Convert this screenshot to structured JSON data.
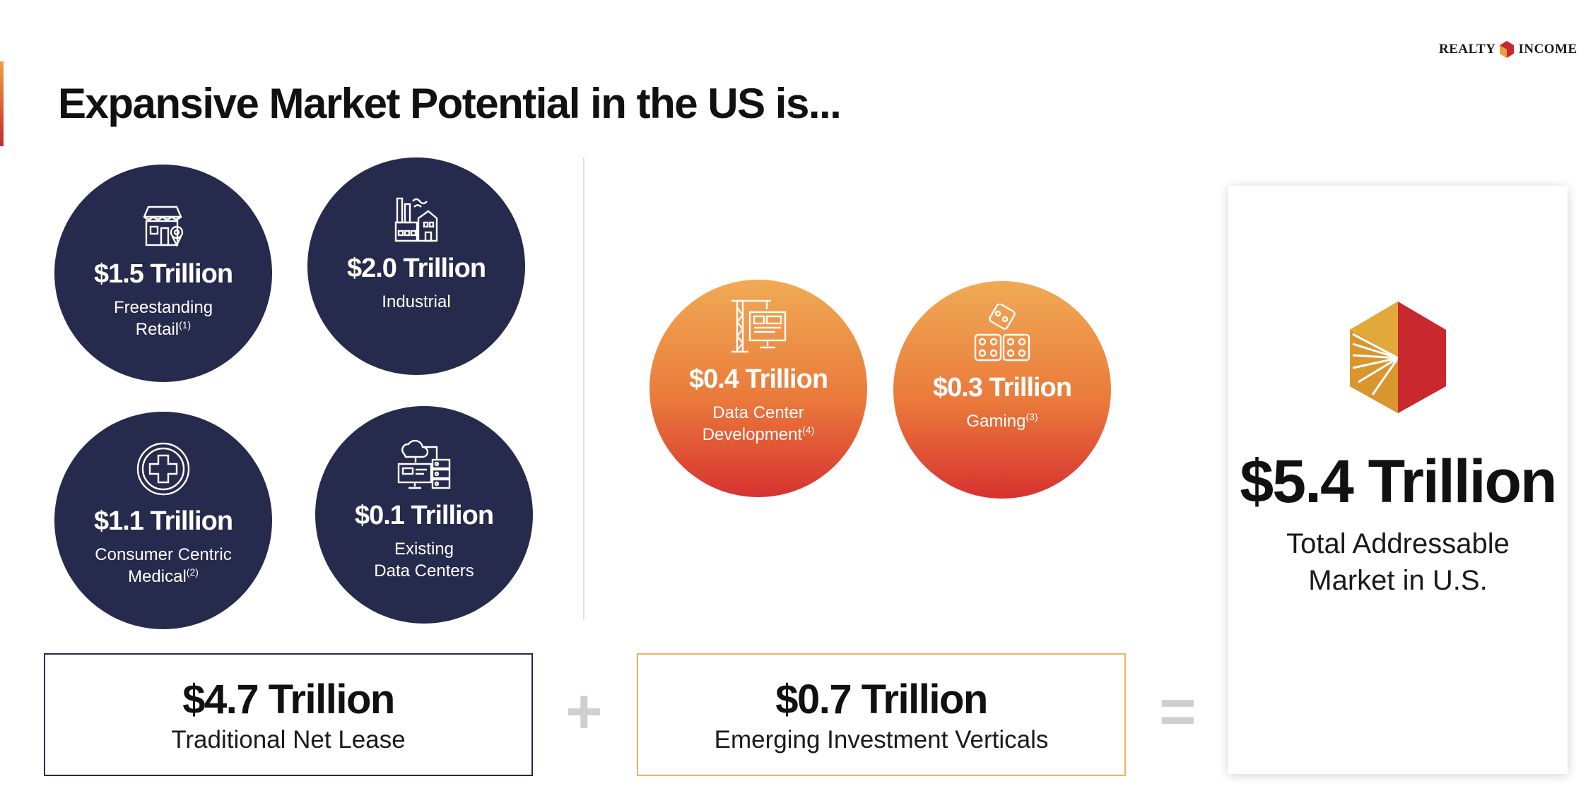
{
  "header": {
    "logo_left": "REALTY",
    "logo_right": "INCOME",
    "title": "Expansive Market Potential in the US is..."
  },
  "colors": {
    "navy": "#262a4c",
    "warm_top": "#f0aa55",
    "warm_bottom": "#d73230",
    "box_navy_border": "#262a4c",
    "box_orange_border": "#f0b15a",
    "operator": "#cfcfcf"
  },
  "traditional": {
    "items": [
      {
        "icon": "storefront-icon",
        "value": "$1.5 Trillion",
        "label_line1": "Freestanding",
        "label_line2": "Retail",
        "sup": "(1)"
      },
      {
        "icon": "factory-icon",
        "value": "$2.0 Trillion",
        "label_line1": "Industrial",
        "label_line2": "",
        "sup": ""
      },
      {
        "icon": "medical-cross-icon",
        "value": "$1.1 Trillion",
        "label_line1": "Consumer Centric",
        "label_line2": "Medical",
        "sup": "(2)"
      },
      {
        "icon": "server-network-icon",
        "value": "$0.1 Trillion",
        "label_line1": "Existing",
        "label_line2": "Data Centers",
        "sup": ""
      }
    ],
    "total_value": "$4.7 Trillion",
    "total_label": "Traditional Net Lease"
  },
  "emerging": {
    "items": [
      {
        "icon": "crane-monitor-icon",
        "value": "$0.4 Trillion",
        "label_line1": "Data Center",
        "label_line2": "Development",
        "sup": "(4)"
      },
      {
        "icon": "dice-icon",
        "value": "$0.3 Trillion",
        "label_line1": "Gaming",
        "label_line2": "",
        "sup": "(3)"
      }
    ],
    "total_value": "$0.7 Trillion",
    "total_label": "Emerging Investment Verticals"
  },
  "operators": {
    "plus": "+",
    "equals": "="
  },
  "total": {
    "value": "$5.4 Trillion",
    "label_line1": "Total Addressable",
    "label_line2": "Market in U.S."
  }
}
